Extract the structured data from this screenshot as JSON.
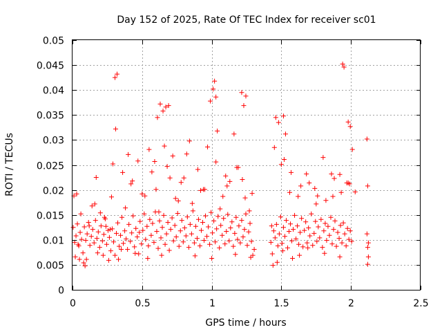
{
  "chart_data": {
    "type": "scatter",
    "title": "Day 152 of 2025, Rate Of TEC Index for receiver sc01",
    "xlabel": "GPS time / hours",
    "ylabel": "ROTI / TECUs",
    "xlim": [
      0,
      2.5
    ],
    "ylim": [
      0,
      0.05
    ],
    "x_ticks": [
      "0",
      "0.5",
      "1",
      "1.5",
      "2",
      "2.5"
    ],
    "y_ticks": [
      "0",
      "0.005",
      "0.01",
      "0.015",
      "0.02",
      "0.025",
      "0.03",
      "0.035",
      "0.04",
      "0.045",
      "0.05"
    ],
    "grid": true,
    "marker": "+",
    "color": "#ff0000",
    "series": [
      {
        "x": [
          0.005,
          0.015,
          0.025,
          0.035,
          0.045,
          0.055,
          0.065,
          0.075,
          0.085,
          0.095,
          0.105,
          0.115,
          0.125,
          0.135,
          0.145,
          0.155,
          0.165,
          0.175,
          0.185,
          0.195,
          0.205,
          0.215,
          0.225,
          0.235,
          0.245,
          0.255,
          0.265,
          0.275,
          0.285,
          0.295,
          0.305,
          0.315,
          0.325,
          0.335,
          0.345,
          0.355,
          0.365,
          0.375,
          0.385,
          0.395,
          0.405,
          0.415,
          0.425,
          0.435,
          0.445,
          0.455,
          0.465,
          0.475,
          0.485,
          0.495,
          0.505,
          0.515,
          0.525,
          0.535,
          0.545,
          0.555,
          0.565,
          0.575,
          0.585,
          0.595,
          0.605,
          0.615,
          0.625,
          0.635,
          0.645,
          0.655,
          0.665,
          0.675,
          0.685,
          0.695,
          0.705,
          0.715,
          0.725,
          0.735,
          0.745,
          0.755,
          0.765,
          0.775,
          0.785,
          0.795,
          0.805,
          0.815,
          0.825,
          0.835,
          0.845,
          0.855,
          0.865,
          0.875,
          0.885,
          0.895,
          0.905,
          0.915,
          0.925,
          0.935,
          0.945,
          0.955,
          0.965,
          0.975,
          0.985,
          0.995,
          1.005,
          1.015,
          1.025,
          1.035,
          1.045,
          1.055,
          1.065,
          1.075,
          1.085,
          1.095,
          1.105,
          1.115,
          1.125,
          1.135,
          1.145,
          1.155,
          1.165,
          1.175,
          1.185,
          1.195,
          1.205,
          1.215,
          1.225,
          1.235,
          1.245,
          1.255,
          1.265,
          1.275,
          1.285,
          1.295,
          1.305,
          1.425,
          1.435,
          1.445,
          1.455,
          1.465,
          1.475,
          1.485,
          1.495,
          1.505,
          1.515,
          1.525,
          1.535,
          1.545,
          1.555,
          1.565,
          1.575,
          1.585,
          1.595,
          1.605,
          1.615,
          1.625,
          1.635,
          1.645,
          1.655,
          1.665,
          1.675,
          1.685,
          1.695,
          1.705,
          1.715,
          1.725,
          1.735,
          1.745,
          1.755,
          1.765,
          1.775,
          1.785,
          1.795,
          1.805,
          1.815,
          1.825,
          1.835,
          1.845,
          1.855,
          1.865,
          1.875,
          1.885,
          1.895,
          1.905,
          1.915,
          1.925,
          1.935,
          1.945,
          1.955,
          1.965,
          1.975,
          1.985,
          1.995,
          2.005,
          2.115,
          2.12,
          2.125,
          0.31,
          0.32,
          0.305,
          0.61,
          0.63,
          0.65,
          0.67,
          0.69,
          0.99,
          1.01,
          1.02,
          1.03,
          1.215,
          1.23,
          1.245,
          1.46,
          1.48,
          1.515,
          1.53,
          1.94,
          1.95,
          1.98,
          1.995,
          2.01,
          2.12,
          0.03,
          0.05,
          0.09,
          0.17,
          0.22,
          0.26,
          0.29,
          0.36,
          0.42,
          0.47,
          0.55,
          0.6,
          0.66,
          0.72,
          0.78,
          0.84,
          0.9,
          0.95,
          1.04,
          1.1,
          1.16,
          1.19,
          1.27,
          1.44,
          1.5,
          1.57,
          1.62,
          1.68,
          1.74,
          1.8,
          1.86,
          1.92,
          1.97,
          2.03,
          2.115,
          0.01,
          0.04,
          0.08,
          0.12,
          0.16,
          0.2,
          0.24,
          0.28,
          0.33,
          0.38,
          0.43,
          0.48,
          0.52,
          0.57,
          0.62,
          0.68,
          0.74,
          0.8,
          0.86,
          0.92,
          0.97,
          1.03,
          1.08,
          1.13,
          1.18,
          1.24,
          1.29,
          1.43,
          1.47,
          1.52,
          1.58,
          1.64,
          1.7,
          1.76,
          1.82,
          1.88,
          1.93,
          1.99,
          2.12,
          0.02,
          0.06,
          0.1,
          0.14,
          0.18,
          0.23,
          0.27,
          0.35,
          0.4,
          0.45,
          0.5,
          0.54,
          0.59,
          0.64,
          0.7,
          0.76,
          0.82,
          0.88,
          0.94,
          1.0,
          1.06,
          1.11,
          1.17,
          1.22,
          1.28,
          1.45,
          1.51,
          1.56,
          1.63,
          1.69,
          1.75,
          1.81,
          1.87,
          1.92,
          1.98,
          2.125
        ],
        "y": [
          0.0125,
          0.0095,
          0.0108,
          0.0132,
          0.0088,
          0.0115,
          0.0101,
          0.0074,
          0.0126,
          0.0099,
          0.0112,
          0.0135,
          0.0089,
          0.0107,
          0.0121,
          0.0094,
          0.0139,
          0.0103,
          0.0116,
          0.0085,
          0.0128,
          0.0098,
          0.0111,
          0.0142,
          0.0091,
          0.0119,
          0.0105,
          0.0078,
          0.0122,
          0.0096,
          0.0069,
          0.0113,
          0.0134,
          0.0087,
          0.0109,
          0.0145,
          0.0093,
          0.0118,
          0.0102,
          0.0081,
          0.0131,
          0.0097,
          0.0114,
          0.0148,
          0.0086,
          0.0123,
          0.0106,
          0.0072,
          0.0137,
          0.0092,
          0.0119,
          0.0152,
          0.0101,
          0.0127,
          0.0088,
          0.0141,
          0.0109,
          0.0133,
          0.0095,
          0.0156,
          0.0117,
          0.0083,
          0.0138,
          0.0104,
          0.0125,
          0.0149,
          0.0091,
          0.0112,
          0.0135,
          0.0079,
          0.0121,
          0.0144,
          0.0098,
          0.0129,
          0.0106,
          0.0153,
          0.0087,
          0.0118,
          0.0139,
          0.0096,
          0.0124,
          0.0108,
          0.0146,
          0.0085,
          0.0131,
          0.0112,
          0.0158,
          0.0094,
          0.0127,
          0.0103,
          0.0141,
          0.0088,
          0.0119,
          0.0135,
          0.0099,
          0.0148,
          0.0107,
          0.0126,
          0.0091,
          0.0155,
          0.0114,
          0.0138,
          0.0096,
          0.0122,
          0.0147,
          0.0084,
          0.0129,
          0.0109,
          0.0143,
          0.0092,
          0.0117,
          0.0151,
          0.0098,
          0.0124,
          0.0136,
          0.0087,
          0.0113,
          0.0145,
          0.0101,
          0.0128,
          0.0094,
          0.0139,
          0.0106,
          0.0121,
          0.0152,
          0.0089,
          0.0116,
          0.0133,
          0.0097,
          0.0069,
          0.0081,
          0.0095,
          0.0072,
          0.0118,
          0.0104,
          0.0131,
          0.0088,
          0.0112,
          0.0146,
          0.0093,
          0.0125,
          0.0107,
          0.0139,
          0.0084,
          0.0117,
          0.0132,
          0.0098,
          0.0121,
          0.0149,
          0.0102,
          0.0128,
          0.0091,
          0.0115,
          0.0143,
          0.0086,
          0.0119,
          0.0136,
          0.0094,
          0.0124,
          0.0108,
          0.0152,
          0.0089,
          0.0113,
          0.0137,
          0.0097,
          0.0126,
          0.0104,
          0.0141,
          0.0085,
          0.0118,
          0.0133,
          0.0099,
          0.0127,
          0.0109,
          0.0145,
          0.0092,
          0.0121,
          0.0138,
          0.0087,
          0.0115,
          0.0103,
          0.0129,
          0.0094,
          0.0134,
          0.0112,
          0.0088,
          0.0123,
          0.0101,
          0.0118,
          0.0097,
          0.0112,
          0.0085,
          0.0066,
          0.0322,
          0.0432,
          0.0425,
          0.0345,
          0.0372,
          0.0358,
          0.0366,
          0.0369,
          0.0378,
          0.0402,
          0.0418,
          0.0386,
          0.0395,
          0.0369,
          0.0388,
          0.0345,
          0.0335,
          0.0348,
          0.0312,
          0.0452,
          0.0446,
          0.0336,
          0.0327,
          0.0281,
          0.0208,
          0.0192,
          0.0061,
          0.0048,
          0.0225,
          0.0069,
          0.0059,
          0.0252,
          0.0235,
          0.0212,
          0.0258,
          0.0281,
          0.0201,
          0.0288,
          0.0268,
          0.0215,
          0.0298,
          0.0241,
          0.0201,
          0.0318,
          0.0228,
          0.0312,
          0.0245,
          0.0158,
          0.0049,
          0.0251,
          0.0235,
          0.0187,
          0.0232,
          0.0203,
          0.0265,
          0.0232,
          0.0231,
          0.0214,
          0.0196,
          0.0302,
          0.0188,
          0.0091,
          0.0054,
          0.0128,
          0.0172,
          0.0154,
          0.0127,
          0.0186,
          0.0061,
          0.0164,
          0.0218,
          0.0115,
          0.0188,
          0.0236,
          0.0156,
          0.0247,
          0.0183,
          0.0224,
          0.0173,
          0.0199,
          0.0286,
          0.0256,
          0.0187,
          0.0217,
          0.0245,
          0.0184,
          0.0193,
          0.0128,
          0.0055,
          0.0261,
          0.0063,
          0.0208,
          0.0214,
          0.0188,
          0.0179,
          0.0223,
          0.0195,
          0.0212,
          0.0051,
          0.0066,
          0.0152,
          0.0061,
          0.0168,
          0.0074,
          0.0145,
          0.0121,
          0.0081,
          0.0271,
          0.0073,
          0.0192,
          0.0063,
          0.0257,
          0.0069,
          0.0224,
          0.0178,
          0.0272,
          0.0068,
          0.0201,
          0.0063,
          0.0162,
          0.0208,
          0.0071,
          0.0221,
          0.0065,
          0.0285,
          0.0078,
          0.0195,
          0.0069,
          0.0084,
          0.0172,
          0.0073,
          0.0187,
          0.0066,
          0.0214,
          0.0094
        ]
      }
    ]
  }
}
